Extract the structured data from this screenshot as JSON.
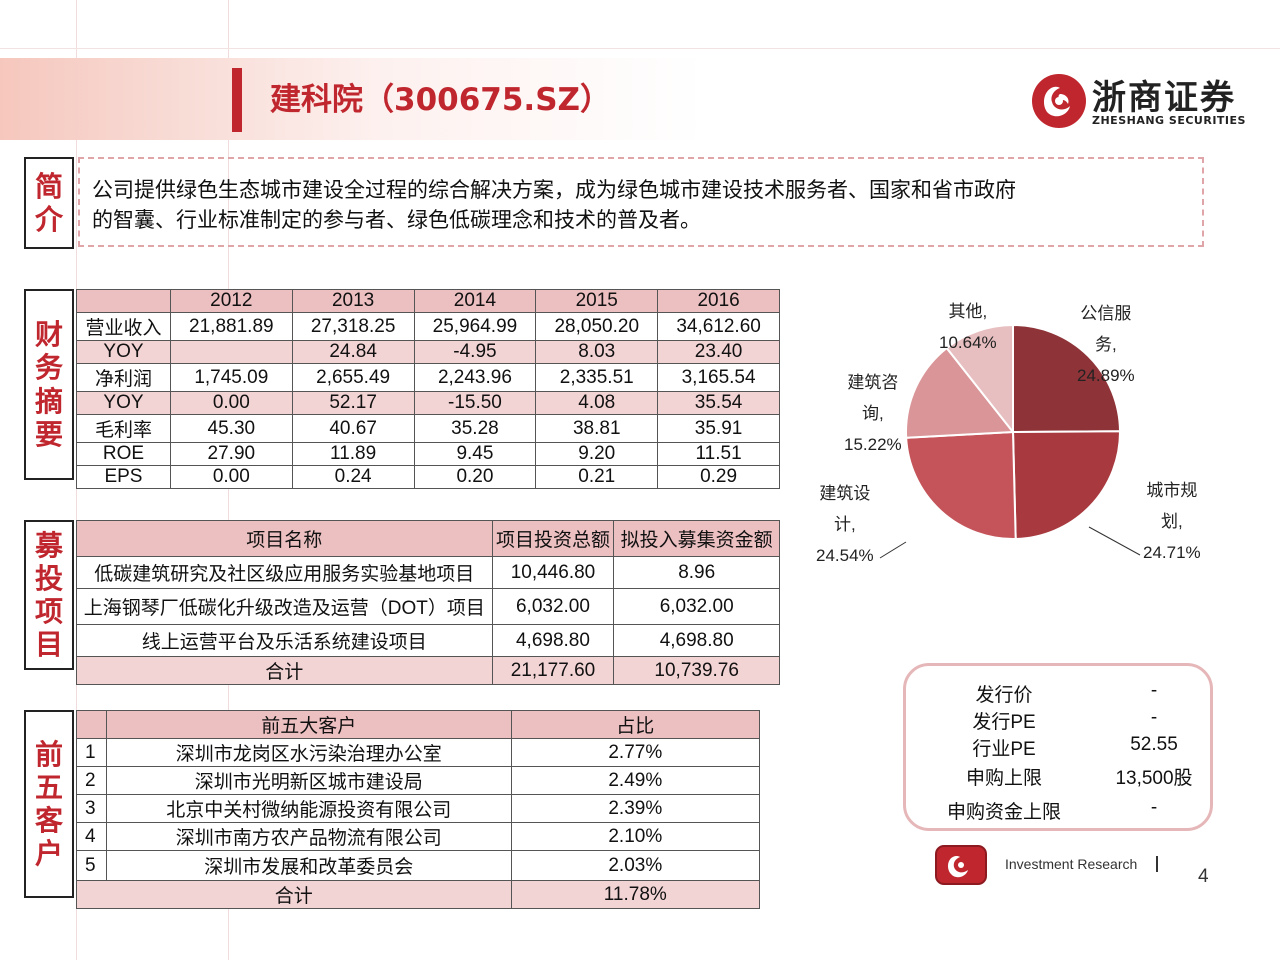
{
  "header": {
    "title": "建科院（300675.SZ）",
    "logo_cn": "浙商证券",
    "logo_en": "ZHESHANG SECURITIES"
  },
  "intro": {
    "label": [
      "简",
      "介"
    ],
    "text_line1": "公司提供绿色生态城市建设全过程的综合解决方案，成为绿色城市建设技术服务者、国家和省市政府",
    "text_line2": "的智囊、行业标准制定的参与者、绿色低碳理念和技术的普及者。"
  },
  "finance": {
    "label": [
      "财",
      "务",
      "摘",
      "要"
    ],
    "years": [
      "2012",
      "2013",
      "2014",
      "2015",
      "2016"
    ],
    "rows": [
      {
        "name": "营业收入",
        "values": [
          "21,881.89",
          "27,318.25",
          "25,964.99",
          "28,050.20",
          "34,612.60"
        ]
      },
      {
        "name": "YOY",
        "values": [
          "",
          "24.84",
          "-4.95",
          "8.03",
          "23.40"
        ]
      },
      {
        "name": "净利润",
        "values": [
          "1,745.09",
          "2,655.49",
          "2,243.96",
          "2,335.51",
          "3,165.54"
        ]
      },
      {
        "name": "YOY",
        "values": [
          "0.00",
          "52.17",
          "-15.50",
          "4.08",
          "35.54"
        ]
      },
      {
        "name": "毛利率",
        "values": [
          "45.30",
          "40.67",
          "35.28",
          "38.81",
          "35.91"
        ]
      },
      {
        "name": "ROE",
        "values": [
          "27.90",
          "11.89",
          "9.45",
          "9.20",
          "11.51"
        ]
      },
      {
        "name": "EPS",
        "values": [
          "0.00",
          "0.24",
          "0.20",
          "0.21",
          "0.29"
        ]
      }
    ]
  },
  "projects": {
    "label": [
      "募",
      "投",
      "项",
      "目"
    ],
    "headers": [
      "项目名称",
      "项目投资总额",
      "拟投入募集资金额"
    ],
    "rows": [
      {
        "name": "低碳建筑研究及社区级应用服务实验基地项目",
        "total": "10,446.80",
        "raise": "8.96"
      },
      {
        "name": "上海钢琴厂低碳化升级改造及运营（DOT）项目",
        "total": "6,032.00",
        "raise": "6,032.00"
      },
      {
        "name": "线上运营平台及乐活系统建设项目",
        "total": "4,698.80",
        "raise": "4,698.80"
      }
    ],
    "total_row": {
      "name": "合计",
      "total": "21,177.60",
      "raise": "10,739.76"
    }
  },
  "customers": {
    "label": [
      "前",
      "五",
      "客",
      "户"
    ],
    "headers": [
      "前五大客户",
      "占比"
    ],
    "rows": [
      {
        "no": "1",
        "name": "深圳市龙岗区水污染治理办公室",
        "share": "2.77%"
      },
      {
        "no": "2",
        "name": "深圳市光明新区城市建设局",
        "share": "2.49%"
      },
      {
        "no": "3",
        "name": "北京中关村微纳能源投资有限公司",
        "share": "2.39%"
      },
      {
        "no": "4",
        "name": "深圳市南方农产品物流有限公司",
        "share": "2.10%"
      },
      {
        "no": "5",
        "name": "深圳市发展和改革委员会",
        "share": "2.03%"
      }
    ],
    "total_row": {
      "name": "合计",
      "share": "11.78%"
    }
  },
  "chart_data": {
    "type": "pie",
    "title": "",
    "slices": [
      {
        "label": "公信服务",
        "value": 24.89,
        "label_lines": [
          "公信服",
          "务,",
          "24.89%"
        ],
        "color": "#8e3337"
      },
      {
        "label": "城市规划",
        "value": 24.71,
        "label_lines": [
          "城市规",
          "划,",
          "24.71%"
        ],
        "color": "#a83a3f"
      },
      {
        "label": "建筑设计",
        "value": 24.54,
        "label_lines": [
          "建筑设",
          "计,",
          "24.54%"
        ],
        "color": "#c4545a"
      },
      {
        "label": "建筑咨询",
        "value": 15.22,
        "label_lines": [
          "建筑咨",
          "询,",
          "15.22%"
        ],
        "color": "#d99597"
      },
      {
        "label": "其他",
        "value": 10.64,
        "label_lines": [
          "其他,",
          "10.64%"
        ],
        "color": "#e7bfc0"
      }
    ]
  },
  "issue_info": {
    "rows": [
      {
        "key": "发行价",
        "value": "-"
      },
      {
        "key": "发行PE",
        "value": "-"
      },
      {
        "key": "行业PE",
        "value": "52.55"
      },
      {
        "key": "申购上限",
        "value": "13,500股"
      },
      {
        "key": "申购资金上限",
        "value": "-"
      }
    ]
  },
  "footer": {
    "text": "Investment Research",
    "page": "4"
  }
}
